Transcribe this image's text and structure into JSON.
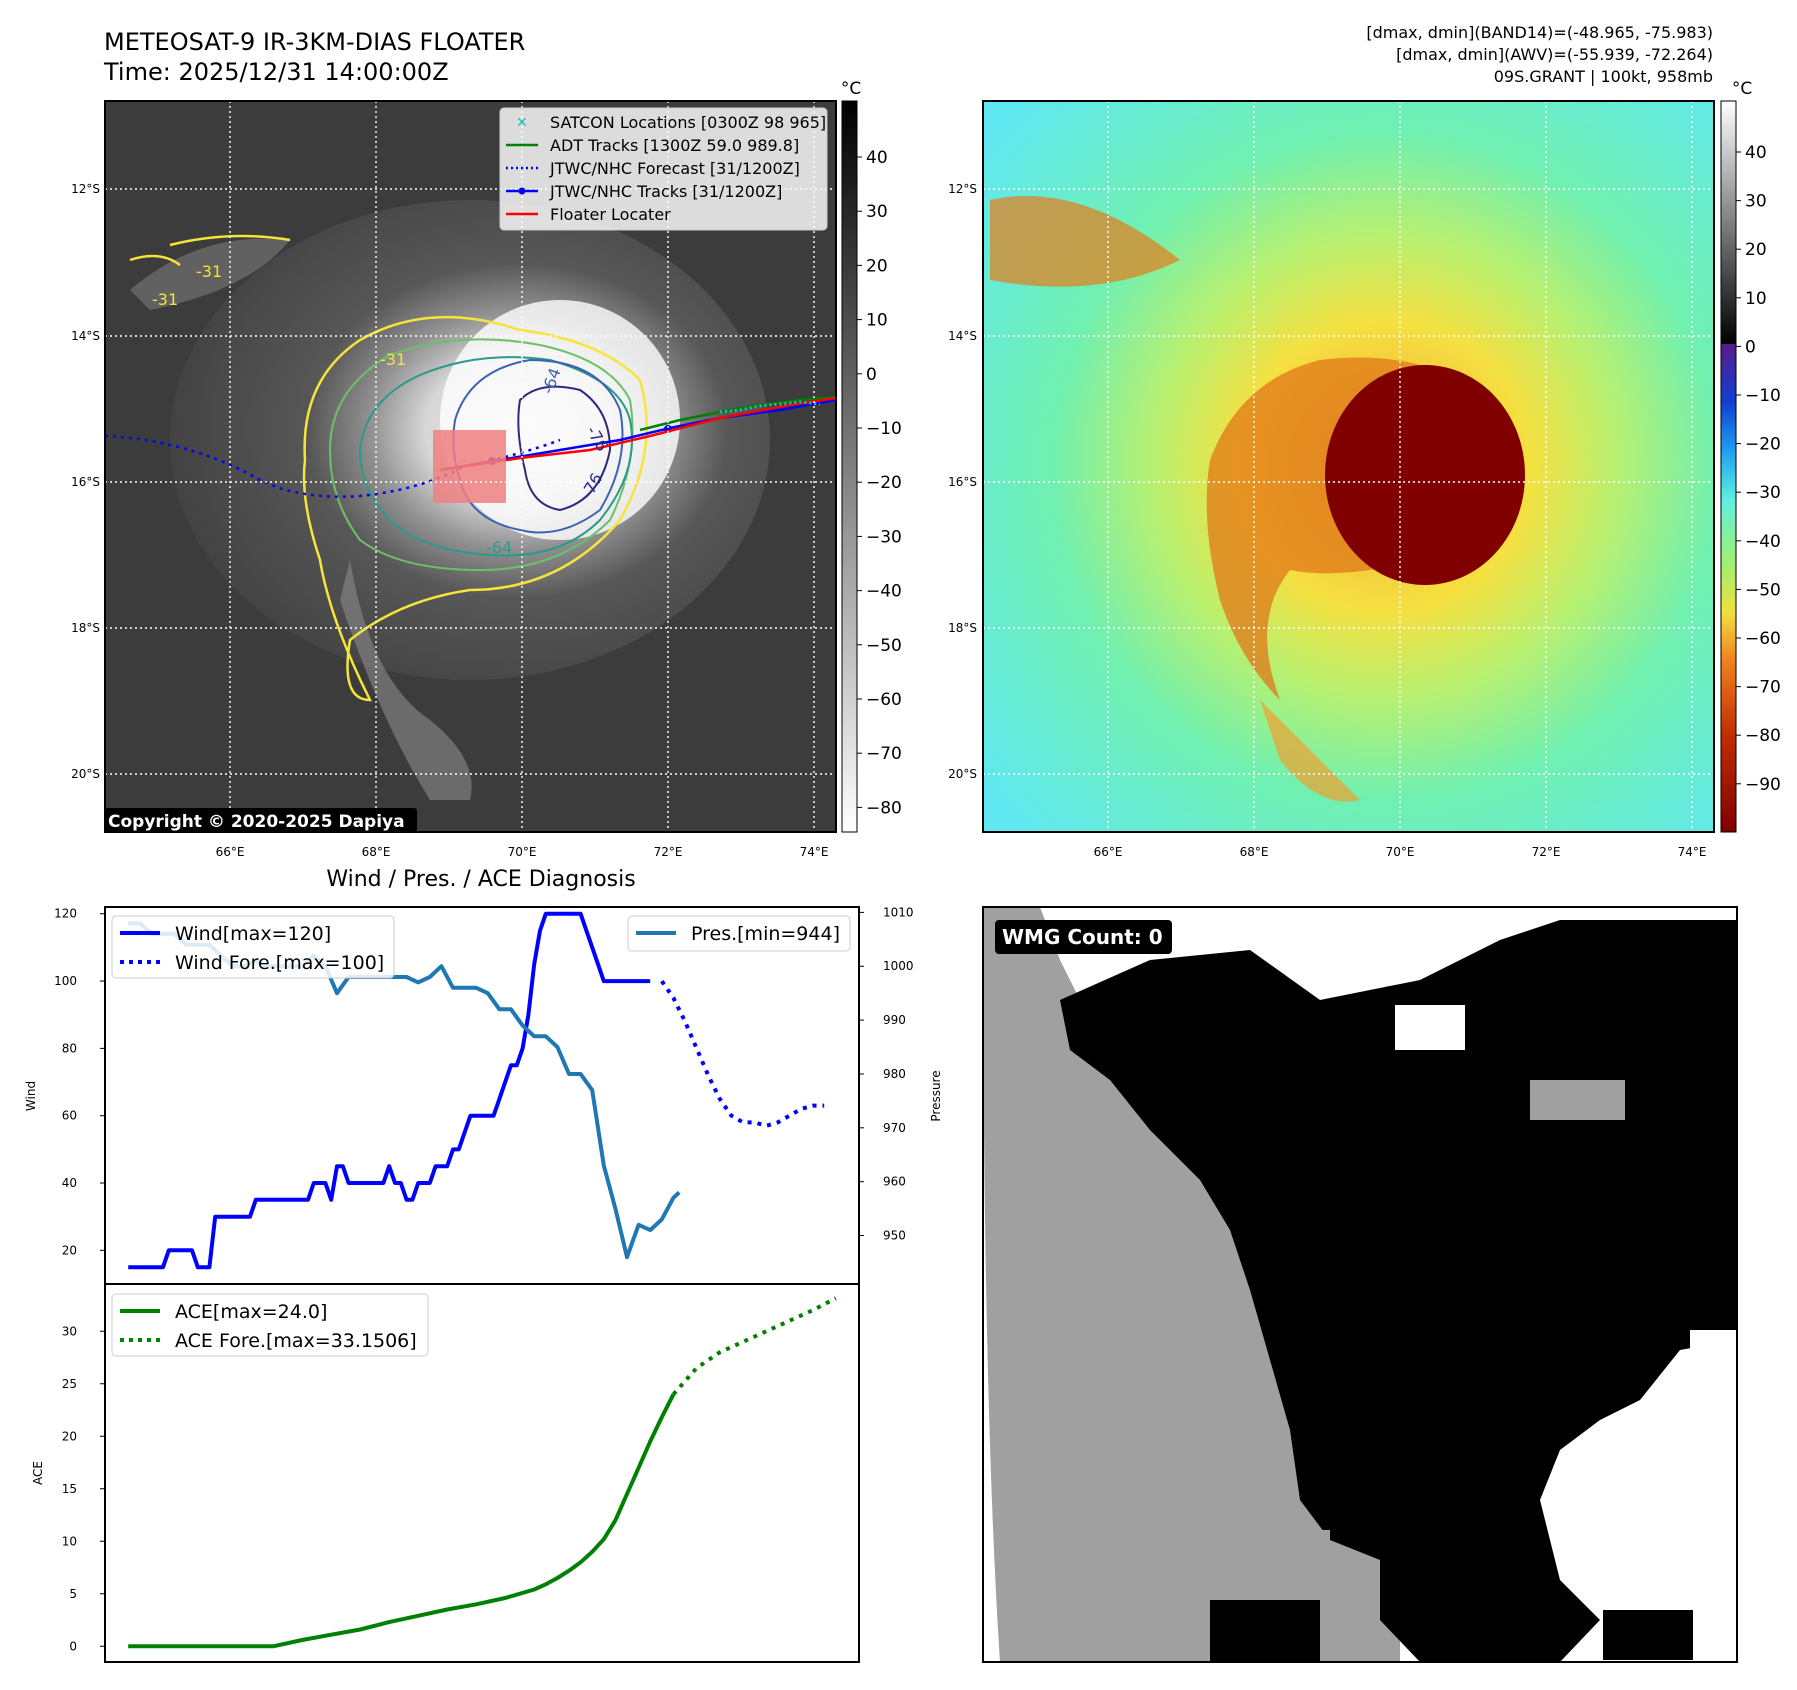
{
  "header": {
    "title_line1": "METEOSAT-9 IR-3KM-DIAS FLOATER",
    "title_line2": "Time: 2025/12/31 14:00:00Z",
    "info_line1": "[dmax, dmin](BAND14)=(-48.965, -75.983)",
    "info_line2": "[dmax, dmin](AWV)=(-55.939, -72.264)",
    "info_line3": "09S.GRANT | 100kt, 958mb"
  },
  "map": {
    "lat_labels": [
      "12°S",
      "14°S",
      "16°S",
      "18°S",
      "20°S"
    ],
    "lon_labels": [
      "66°E",
      "68°E",
      "70°E",
      "72°E",
      "74°E"
    ],
    "copyright": "Copyright © 2020-2025 Dapiya",
    "contour_labels": [
      "-31",
      "-31",
      "-31",
      "-64",
      "-76",
      "-76",
      "-64"
    ],
    "legend": [
      {
        "label": "SATCON Locations [0300Z 98 965]",
        "color": "#17bfbf",
        "style": "x"
      },
      {
        "label": "ADT Tracks [1300Z 59.0 989.8]",
        "color": "#008000",
        "style": "solid"
      },
      {
        "label": "JTWC/NHC Forecast [31/1200Z]",
        "color": "#0000ff",
        "style": "dotted"
      },
      {
        "label": "JTWC/NHC Tracks [31/1200Z]",
        "color": "#0000ff",
        "style": "solid-dot"
      },
      {
        "label": "Floater Locater",
        "color": "#ff0000",
        "style": "solid"
      }
    ],
    "colorbar_ir": {
      "unit": "°C",
      "ticks": [
        "40",
        "30",
        "20",
        "10",
        "0",
        "−10",
        "−20",
        "−30",
        "−40",
        "−50",
        "−60",
        "−70",
        "−80"
      ]
    },
    "colorbar_awv": {
      "unit": "°C",
      "ticks": [
        "40",
        "30",
        "20",
        "10",
        "0",
        "−10",
        "−20",
        "−30",
        "−40",
        "−50",
        "−60",
        "−70",
        "−80",
        "−90"
      ]
    }
  },
  "chart_data": [
    {
      "type": "line",
      "title": "Wind / Pres. / ACE Diagnosis",
      "ylabel": "Wind",
      "y2label": "Pressure",
      "ylim": [
        10,
        122
      ],
      "y2lim": [
        941,
        1011
      ],
      "yticks": [
        "20",
        "40",
        "60",
        "80",
        "100",
        "120"
      ],
      "y2ticks": [
        "950",
        "960",
        "970",
        "980",
        "990",
        "1000",
        "1010"
      ],
      "series": [
        {
          "name": "Wind[max=120]",
          "color": "#0000ff",
          "x": [
            0,
            1,
            2,
            3,
            4,
            5,
            6,
            7,
            8,
            9,
            10,
            11,
            12,
            13,
            14,
            15,
            16,
            17,
            18,
            19,
            20,
            21,
            22,
            23,
            24,
            25,
            26,
            27,
            28,
            29,
            30,
            31,
            32,
            33,
            34,
            35,
            36,
            37,
            38,
            39,
            40,
            41,
            42,
            43,
            44,
            45,
            46,
            47,
            48,
            49,
            50,
            51,
            52,
            53,
            54,
            55,
            56,
            57,
            58,
            59,
            60,
            61,
            62,
            63,
            64,
            65,
            66,
            67,
            68,
            69,
            70,
            71,
            72,
            73,
            74,
            75,
            76,
            77,
            78,
            79,
            80,
            81,
            82,
            83,
            84,
            85,
            86,
            87,
            88,
            89,
            90
          ],
          "values": [
            15,
            15,
            15,
            15,
            15,
            15,
            15,
            20,
            20,
            20,
            20,
            20,
            15,
            15,
            15,
            30,
            30,
            30,
            30,
            30,
            30,
            30,
            35,
            35,
            35,
            35,
            35,
            35,
            35,
            35,
            35,
            35,
            40,
            40,
            40,
            35,
            45,
            45,
            40,
            40,
            40,
            40,
            40,
            40,
            40,
            45,
            40,
            40,
            35,
            35,
            40,
            40,
            40,
            45,
            45,
            45,
            50,
            50,
            55,
            60,
            60,
            60,
            60,
            60,
            65,
            70,
            75,
            75,
            80,
            90,
            105,
            115,
            120,
            120,
            120,
            120,
            120,
            120,
            120,
            115,
            110,
            105,
            100,
            100,
            100,
            100,
            100,
            100,
            100,
            100,
            100
          ]
        },
        {
          "name": "Wind Fore.[max=100]",
          "color": "#0000ff",
          "dashed": true,
          "x": [
            92,
            94,
            96,
            98,
            100,
            102,
            104,
            106,
            108,
            110,
            112,
            114,
            116,
            118,
            120
          ],
          "values": [
            100,
            95,
            88,
            80,
            72,
            65,
            60,
            58,
            58,
            57,
            58,
            60,
            62,
            63,
            63
          ]
        },
        {
          "name": "Pres.[min=944]",
          "color": "#1f77b4",
          "axis": "y2",
          "x": [
            0,
            2,
            4,
            5,
            6,
            8,
            10,
            12,
            14,
            16,
            18,
            20,
            22,
            24,
            26,
            28,
            30,
            32,
            34,
            36,
            38,
            40,
            42,
            44,
            46,
            48,
            50,
            52,
            54,
            56,
            58,
            60,
            62,
            64,
            66,
            68,
            70,
            72,
            74,
            76,
            78,
            80,
            82,
            84,
            86,
            88,
            90,
            92,
            94,
            95
          ],
          "values": [
            1008,
            1008,
            1006,
            1006,
            1006,
            1006,
            1004,
            1004,
            1004,
            1002,
            1000,
            1000,
            1001,
            1000,
            1000,
            1000,
            1000,
            1002,
            1000,
            995,
            998,
            998,
            998,
            998,
            998,
            998,
            997,
            998,
            1000,
            996,
            996,
            996,
            995,
            992,
            992,
            989,
            987,
            987,
            985,
            980,
            980,
            977,
            963,
            955,
            946,
            952,
            951,
            953,
            957,
            958
          ]
        }
      ]
    },
    {
      "type": "line",
      "ylabel": "ACE",
      "ylim": [
        -1.5,
        34.5
      ],
      "yticks": [
        "0",
        "5",
        "10",
        "15",
        "20",
        "25",
        "30"
      ],
      "series": [
        {
          "name": "ACE[max=24.0]",
          "color": "#008000",
          "x": [
            0,
            10,
            20,
            25,
            30,
            35,
            40,
            45,
            50,
            55,
            60,
            65,
            70,
            72,
            74,
            76,
            78,
            80,
            82,
            84,
            86,
            88,
            90,
            92,
            94
          ],
          "values": [
            0,
            0,
            0,
            0,
            0.6,
            1.1,
            1.6,
            2.3,
            2.9,
            3.5,
            4.0,
            4.6,
            5.4,
            5.9,
            6.5,
            7.2,
            8.0,
            9.0,
            10.2,
            12.0,
            14.5,
            17.0,
            19.5,
            21.8,
            24.0
          ]
        },
        {
          "name": "ACE Fore.[max=33.1506]",
          "color": "#008000",
          "dashed": true,
          "x": [
            94,
            98,
            102,
            106,
            110,
            114,
            118,
            122
          ],
          "values": [
            24.0,
            26.5,
            28.0,
            29.0,
            30.0,
            31.0,
            32.0,
            33.15
          ]
        }
      ]
    }
  ],
  "wmg": {
    "label": "WMG Count: 0"
  }
}
